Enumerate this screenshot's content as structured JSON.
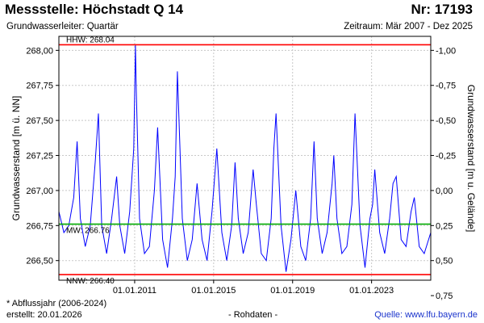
{
  "header": {
    "station": "Messstelle: Höchstadt Q 14",
    "number": "Nr: 17193",
    "aquifer": "Grundwasserleiter: Quartär",
    "period": "Zeitraum: Mär 2007 - Dez 2025"
  },
  "footer": {
    "note": "* Abflussjahr (2006-2024)",
    "created": "erstellt:  20.01.2026",
    "rawdata": "- Rohdaten -",
    "source": "Quelle: www.lfu.bayern.de"
  },
  "colors": {
    "series": "#0000ff",
    "hhw": "#ff0000",
    "nnw": "#ff0000",
    "mw": "#00aa00",
    "grid": "#c8c8c8"
  },
  "chart_data": {
    "type": "line",
    "ylabel": "Grundwasserstand [m ü. NN]",
    "y2label": "Grundwasserstand [m u. Gelände]",
    "ylim": [
      266.36,
      268.1
    ],
    "yticks": [
      266.5,
      266.75,
      267.0,
      267.25,
      267.5,
      267.75,
      268.0
    ],
    "ytick_labels": [
      "266,50",
      "266,75",
      "267,00",
      "267,25",
      "267,50",
      "267,75",
      "268,00"
    ],
    "y2_zero_at": 267.0,
    "y2ticks": [
      0.75,
      0.5,
      0.25,
      0.0,
      -0.25,
      -0.5,
      -0.75,
      -1.0
    ],
    "y2tick_labels": [
      "0,75",
      "0,50",
      "0,25",
      "0,00",
      "-0,25",
      "-0,50",
      "-0,75",
      "-1,00"
    ],
    "xlim": [
      "2007-03-01",
      "2025-12-31"
    ],
    "xticks": [
      "2011-01-01",
      "2015-01-01",
      "2019-01-01",
      "2023-01-01"
    ],
    "xtick_labels": [
      "01.01.2011",
      "01.01.2015",
      "01.01.2019",
      "01.01.2023"
    ],
    "grid": true,
    "reference_lines": [
      {
        "name": "HHW",
        "label": "HHW: 268.04",
        "value": 268.04
      },
      {
        "name": "MW",
        "label": "MW: 266.76",
        "value": 266.76
      },
      {
        "name": "NNW",
        "label": "NNW: 266.40",
        "value": 266.4
      }
    ],
    "series": [
      {
        "x": [
          "2007-03-01",
          "2007-06-01",
          "2007-09-01",
          "2007-12-01",
          "2008-02-01",
          "2008-04-01",
          "2008-07-01",
          "2008-10-01",
          "2009-01-01",
          "2009-03-01",
          "2009-05-01",
          "2009-08-01",
          "2009-11-01",
          "2010-02-01",
          "2010-04-01",
          "2010-07-01",
          "2010-10-01",
          "2010-12-15",
          "2011-01-15",
          "2011-02-01",
          "2011-04-01",
          "2011-07-01",
          "2011-10-01",
          "2012-01-01",
          "2012-03-01",
          "2012-06-01",
          "2012-09-01",
          "2012-12-01",
          "2013-01-20",
          "2013-03-01",
          "2013-06-01",
          "2013-09-01",
          "2013-12-01",
          "2014-03-01",
          "2014-06-01",
          "2014-09-01",
          "2014-12-01",
          "2015-03-01",
          "2015-06-01",
          "2015-09-01",
          "2015-12-01",
          "2016-02-01",
          "2016-04-01",
          "2016-07-01",
          "2016-10-01",
          "2017-01-01",
          "2017-03-01",
          "2017-06-01",
          "2017-09-01",
          "2017-12-01",
          "2018-01-20",
          "2018-03-01",
          "2018-06-01",
          "2018-09-01",
          "2018-12-01",
          "2019-03-01",
          "2019-06-01",
          "2019-09-01",
          "2019-12-01",
          "2020-02-01",
          "2020-04-01",
          "2020-07-01",
          "2020-10-01",
          "2021-01-01",
          "2021-02-01",
          "2021-04-01",
          "2021-07-01",
          "2021-10-01",
          "2022-01-01",
          "2022-03-01",
          "2022-06-01",
          "2022-09-01",
          "2022-12-01",
          "2023-01-20",
          "2023-03-01",
          "2023-06-01",
          "2023-09-01",
          "2023-12-01",
          "2024-02-01",
          "2024-04-01",
          "2024-07-01",
          "2024-10-01",
          "2025-01-01",
          "2025-03-01",
          "2025-06-01",
          "2025-09-01",
          "2025-12-31"
        ],
        "values": [
          266.85,
          266.7,
          266.75,
          266.95,
          267.35,
          266.8,
          266.6,
          266.75,
          267.2,
          267.55,
          266.75,
          266.55,
          266.8,
          267.1,
          266.75,
          266.55,
          266.85,
          267.3,
          268.04,
          267.7,
          266.8,
          266.55,
          266.6,
          267.0,
          267.45,
          266.65,
          266.45,
          266.8,
          267.1,
          267.85,
          266.8,
          266.5,
          266.65,
          267.05,
          266.65,
          266.5,
          266.85,
          267.3,
          266.7,
          266.5,
          266.75,
          267.2,
          266.8,
          266.55,
          266.7,
          267.15,
          266.9,
          266.55,
          266.5,
          266.8,
          267.3,
          267.55,
          266.75,
          266.42,
          266.65,
          267.0,
          266.6,
          266.5,
          266.8,
          267.35,
          266.8,
          266.55,
          266.7,
          267.05,
          267.25,
          266.8,
          266.55,
          266.6,
          266.9,
          267.55,
          266.75,
          266.45,
          266.8,
          266.9,
          267.15,
          266.7,
          266.55,
          266.8,
          267.05,
          267.1,
          266.65,
          266.6,
          266.85,
          266.95,
          266.6,
          266.55,
          266.7
        ]
      }
    ]
  }
}
